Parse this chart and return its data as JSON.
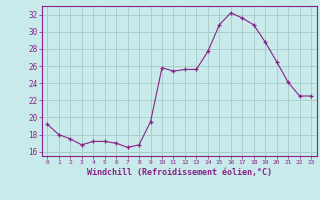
{
  "x": [
    0,
    1,
    2,
    3,
    4,
    5,
    6,
    7,
    8,
    9,
    10,
    11,
    12,
    13,
    14,
    15,
    16,
    17,
    18,
    19,
    20,
    21,
    22,
    23
  ],
  "y": [
    19.2,
    18.0,
    17.5,
    16.8,
    17.2,
    17.2,
    17.0,
    16.5,
    16.8,
    19.5,
    25.8,
    25.4,
    25.6,
    25.6,
    27.7,
    30.8,
    32.2,
    31.6,
    30.8,
    28.8,
    26.5,
    24.1,
    22.5,
    22.5
  ],
  "line_color": "#882288",
  "marker": "+",
  "bg_color": "#c8eaea",
  "grid_color": "#aacece",
  "xlabel": "Windchill (Refroidissement éolien,°C)",
  "ylabel_ticks": [
    16,
    18,
    20,
    22,
    24,
    26,
    28,
    30,
    32
  ],
  "xtick_labels": [
    "0",
    "1",
    "2",
    "3",
    "4",
    "5",
    "6",
    "7",
    "8",
    "9",
    "10",
    "11",
    "12",
    "13",
    "14",
    "15",
    "16",
    "17",
    "18",
    "19",
    "20",
    "21",
    "22",
    "23"
  ],
  "xlim": [
    -0.5,
    23.5
  ],
  "ylim": [
    15.5,
    33.0
  ]
}
